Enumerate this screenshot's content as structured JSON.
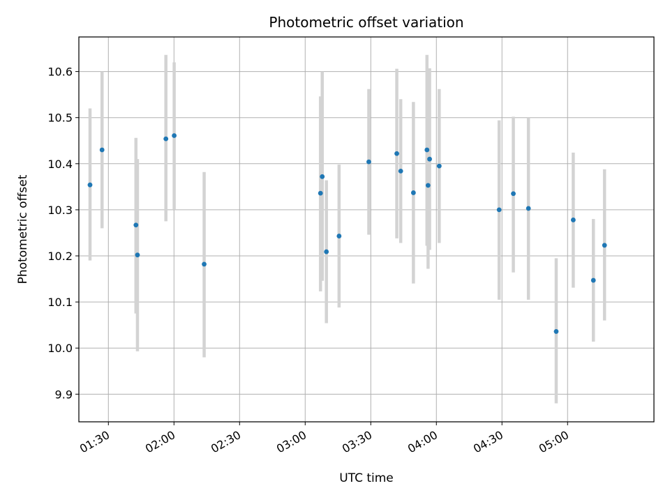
{
  "chart_data": {
    "type": "scatter",
    "title": "Photometric offset variation",
    "xlabel": "UTC time",
    "ylabel": "Photometric offset",
    "grid": true,
    "x_unit": "minutes since 00:00 UTC",
    "xlim": [
      76.5,
      339.5
    ],
    "ylim": [
      9.84,
      10.675
    ],
    "x_ticks": [
      {
        "value": 90,
        "label": "01:30"
      },
      {
        "value": 120,
        "label": "02:00"
      },
      {
        "value": 150,
        "label": "02:30"
      },
      {
        "value": 180,
        "label": "03:00"
      },
      {
        "value": 210,
        "label": "03:30"
      },
      {
        "value": 240,
        "label": "04:00"
      },
      {
        "value": 270,
        "label": "04:30"
      },
      {
        "value": 300,
        "label": "05:00"
      }
    ],
    "y_ticks": [
      {
        "value": 9.9,
        "label": "9.9"
      },
      {
        "value": 10.0,
        "label": "10.0"
      },
      {
        "value": 10.1,
        "label": "10.1"
      },
      {
        "value": 10.2,
        "label": "10.2"
      },
      {
        "value": 10.3,
        "label": "10.3"
      },
      {
        "value": 10.4,
        "label": "10.4"
      },
      {
        "value": 10.5,
        "label": "10.5"
      },
      {
        "value": 10.6,
        "label": "10.6"
      }
    ],
    "marker_color": "#1f77b4",
    "errorbar_color": "#d3d3d3",
    "points": [
      {
        "x": 81.6,
        "y": 10.354,
        "err_low": 10.19,
        "err_high": 10.52
      },
      {
        "x": 87.1,
        "y": 10.43,
        "err_low": 10.26,
        "err_high": 10.6
      },
      {
        "x": 102.6,
        "y": 10.267,
        "err_low": 10.075,
        "err_high": 10.456
      },
      {
        "x": 103.3,
        "y": 10.202,
        "err_low": 9.993,
        "err_high": 10.41
      },
      {
        "x": 116.3,
        "y": 10.454,
        "err_low": 10.275,
        "err_high": 10.636
      },
      {
        "x": 120.1,
        "y": 10.461,
        "err_low": 10.3,
        "err_high": 10.62
      },
      {
        "x": 133.8,
        "y": 10.182,
        "err_low": 9.98,
        "err_high": 10.382
      },
      {
        "x": 187.0,
        "y": 10.336,
        "err_low": 10.123,
        "err_high": 10.546
      },
      {
        "x": 187.8,
        "y": 10.372,
        "err_low": 10.146,
        "err_high": 10.6
      },
      {
        "x": 189.7,
        "y": 10.209,
        "err_low": 10.054,
        "err_high": 10.364
      },
      {
        "x": 195.5,
        "y": 10.243,
        "err_low": 10.088,
        "err_high": 10.398
      },
      {
        "x": 209.1,
        "y": 10.404,
        "err_low": 10.246,
        "err_high": 10.562
      },
      {
        "x": 221.9,
        "y": 10.422,
        "err_low": 10.238,
        "err_high": 10.606
      },
      {
        "x": 223.7,
        "y": 10.384,
        "err_low": 10.228,
        "err_high": 10.54
      },
      {
        "x": 229.5,
        "y": 10.337,
        "err_low": 10.14,
        "err_high": 10.534
      },
      {
        "x": 235.7,
        "y": 10.43,
        "err_low": 10.222,
        "err_high": 10.636
      },
      {
        "x": 236.2,
        "y": 10.353,
        "err_low": 10.172,
        "err_high": 10.534
      },
      {
        "x": 236.9,
        "y": 10.41,
        "err_low": 10.213,
        "err_high": 10.607
      },
      {
        "x": 241.3,
        "y": 10.395,
        "err_low": 10.228,
        "err_high": 10.562
      },
      {
        "x": 268.7,
        "y": 10.3,
        "err_low": 10.105,
        "err_high": 10.494
      },
      {
        "x": 275.2,
        "y": 10.335,
        "err_low": 10.164,
        "err_high": 10.502
      },
      {
        "x": 282.1,
        "y": 10.303,
        "err_low": 10.105,
        "err_high": 10.5
      },
      {
        "x": 294.8,
        "y": 10.036,
        "err_low": 9.88,
        "err_high": 10.195
      },
      {
        "x": 302.6,
        "y": 10.278,
        "err_low": 10.131,
        "err_high": 10.424
      },
      {
        "x": 311.8,
        "y": 10.147,
        "err_low": 10.014,
        "err_high": 10.28
      },
      {
        "x": 316.9,
        "y": 10.223,
        "err_low": 10.06,
        "err_high": 10.388
      }
    ]
  }
}
